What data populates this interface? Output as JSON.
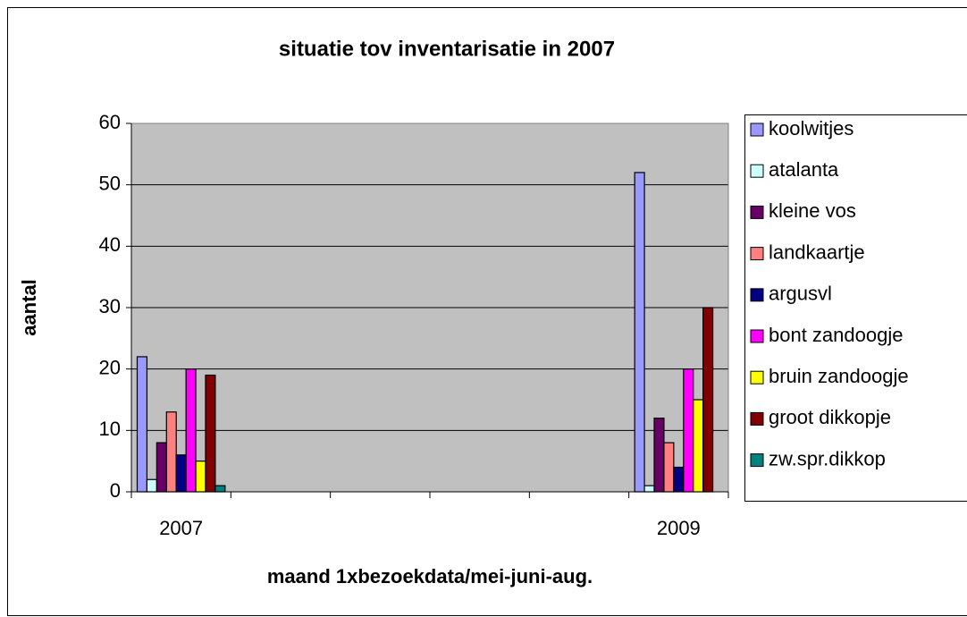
{
  "chart_data": {
    "type": "bar",
    "title": "situatie tov inventarisatie in 2007",
    "x_label": "maand 1xbezoekdata/mei-juni-aug.",
    "y_label": "aantal",
    "categories": [
      "2007",
      null,
      null,
      null,
      null,
      "2009"
    ],
    "series": [
      {
        "name": "koolwitjes",
        "color": "#9999ff",
        "values": [
          22,
          null,
          null,
          null,
          null,
          52
        ]
      },
      {
        "name": "atalanta",
        "color": "#ccffff",
        "values": [
          2,
          null,
          null,
          null,
          null,
          1
        ]
      },
      {
        "name": "kleine vos",
        "color": "#660066",
        "values": [
          8,
          null,
          null,
          null,
          null,
          12
        ]
      },
      {
        "name": "landkaartje",
        "color": "#ff8080",
        "values": [
          13,
          null,
          null,
          null,
          null,
          8
        ]
      },
      {
        "name": "argusvl",
        "color": "#000080",
        "values": [
          6,
          null,
          null,
          null,
          null,
          4
        ]
      },
      {
        "name": "bont zandoogje",
        "color": "#ff00ff",
        "values": [
          20,
          null,
          null,
          null,
          null,
          20
        ]
      },
      {
        "name": "bruin zandoogje",
        "color": "#ffff00",
        "values": [
          5,
          null,
          null,
          null,
          null,
          15
        ]
      },
      {
        "name": "groot dikkopje",
        "color": "#800000",
        "values": [
          19,
          null,
          null,
          null,
          null,
          30
        ]
      },
      {
        "name": "zw.spr.dikkop",
        "color": "#008080",
        "values": [
          1,
          null,
          null,
          null,
          null,
          0
        ]
      }
    ],
    "ylim": [
      0,
      60
    ],
    "yticks": [
      0,
      10,
      20,
      30,
      40,
      50,
      60
    ],
    "grid": true,
    "legend": "right"
  }
}
